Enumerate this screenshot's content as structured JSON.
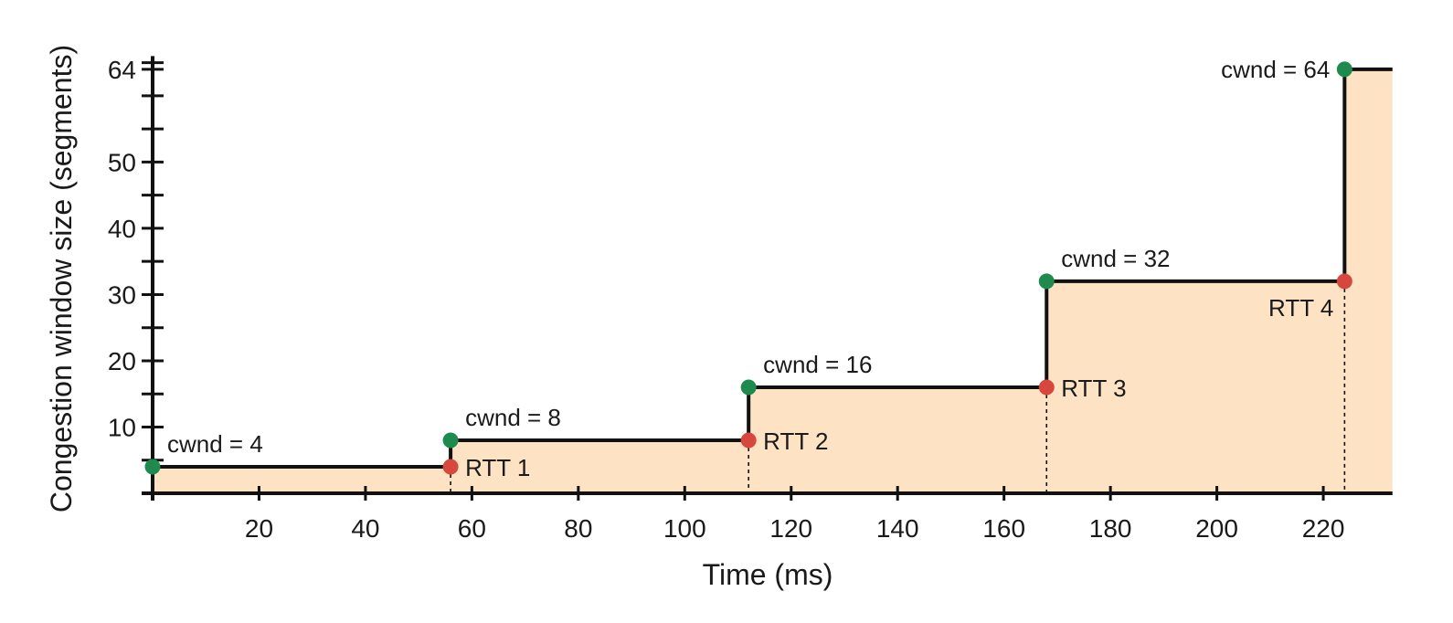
{
  "chart_data": {
    "type": "line",
    "xlabel": "Time (ms)",
    "ylabel": "Congestion window size (segments)",
    "xlim": [
      0,
      233
    ],
    "ylim": [
      0,
      66
    ],
    "x_ticks": [
      20,
      40,
      60,
      80,
      100,
      120,
      140,
      160,
      180,
      200,
      220
    ],
    "y_ticks": [
      10,
      20,
      30,
      40,
      50,
      64
    ],
    "series": [
      {
        "line_style": "step",
        "fill_color": "#fde3c4",
        "points": [
          {
            "x": 0,
            "y": 4
          },
          {
            "x": 56,
            "y": 4
          },
          {
            "x": 56,
            "y": 8
          },
          {
            "x": 112,
            "y": 8
          },
          {
            "x": 112,
            "y": 16
          },
          {
            "x": 168,
            "y": 16
          },
          {
            "x": 168,
            "y": 32
          },
          {
            "x": 224,
            "y": 32
          },
          {
            "x": 224,
            "y": 64
          },
          {
            "x": 233,
            "y": 64
          }
        ]
      }
    ],
    "cwnd_points": [
      {
        "x": 0,
        "y": 4,
        "label": "cwnd = 4"
      },
      {
        "x": 56,
        "y": 8,
        "label": "cwnd = 8"
      },
      {
        "x": 112,
        "y": 16,
        "label": "cwnd = 16"
      },
      {
        "x": 168,
        "y": 32,
        "label": "cwnd = 32"
      },
      {
        "x": 224,
        "y": 64,
        "label": "cwnd = 64"
      }
    ],
    "rtt_points": [
      {
        "x": 56,
        "y": 4,
        "label": "RTT 1"
      },
      {
        "x": 112,
        "y": 8,
        "label": "RTT 2"
      },
      {
        "x": 168,
        "y": 16,
        "label": "RTT 3"
      },
      {
        "x": 224,
        "y": 32,
        "label": "RTT 4"
      }
    ],
    "colors": {
      "cwnd_marker": "#1e8a4e",
      "rtt_marker": "#d8473d",
      "fill": "#fde3c4",
      "line": "#111111"
    }
  }
}
